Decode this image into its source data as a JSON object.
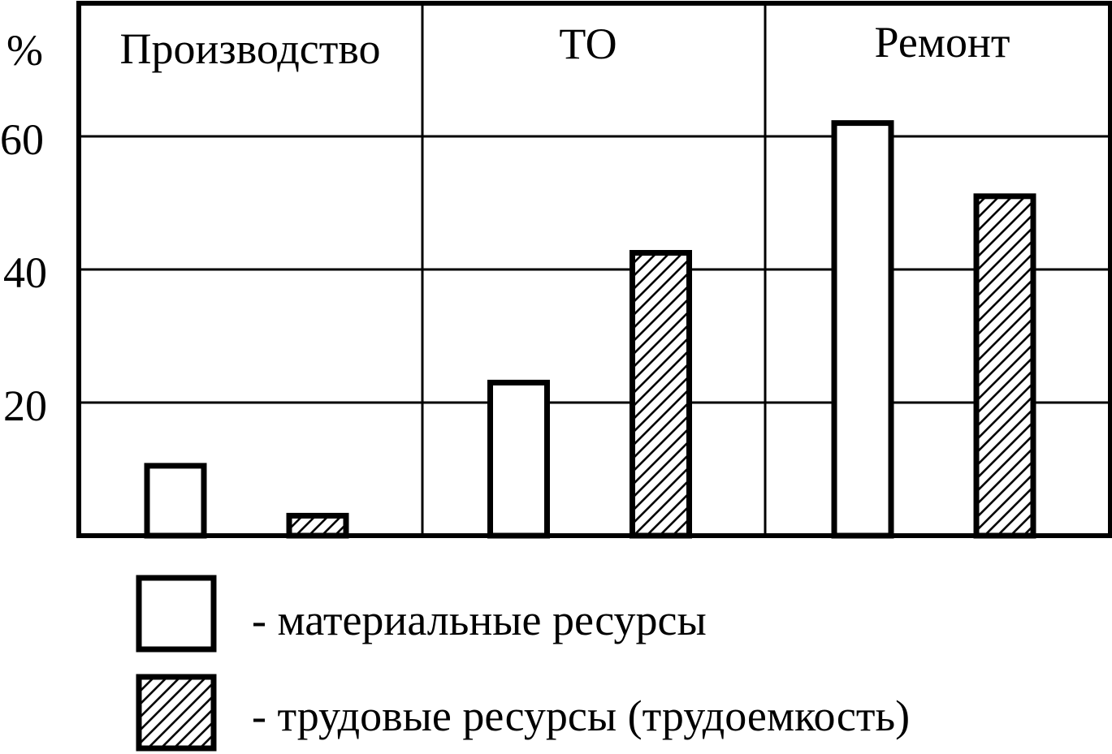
{
  "chart_data": {
    "type": "bar",
    "ylabel": "%",
    "yticks": [
      "20",
      "40",
      "60"
    ],
    "ylim": [
      0,
      80
    ],
    "grid": true,
    "legend_position": "bottom",
    "categories": [
      "Производство",
      "ТО",
      "Ремонт"
    ],
    "series": [
      {
        "name": "материальные ресурсы",
        "legend_text": "- материальные ресурсы",
        "pattern": "none",
        "values": [
          10.5,
          23,
          62
        ]
      },
      {
        "name": "трудовые ресурсы (трудоемкость)",
        "legend_text": "- трудовые ресурсы (трудоемкость)",
        "pattern": "hatch",
        "values": [
          3,
          42.5,
          51
        ]
      }
    ],
    "colors": {
      "stroke": "#000000",
      "fill": "#ffffff"
    }
  }
}
